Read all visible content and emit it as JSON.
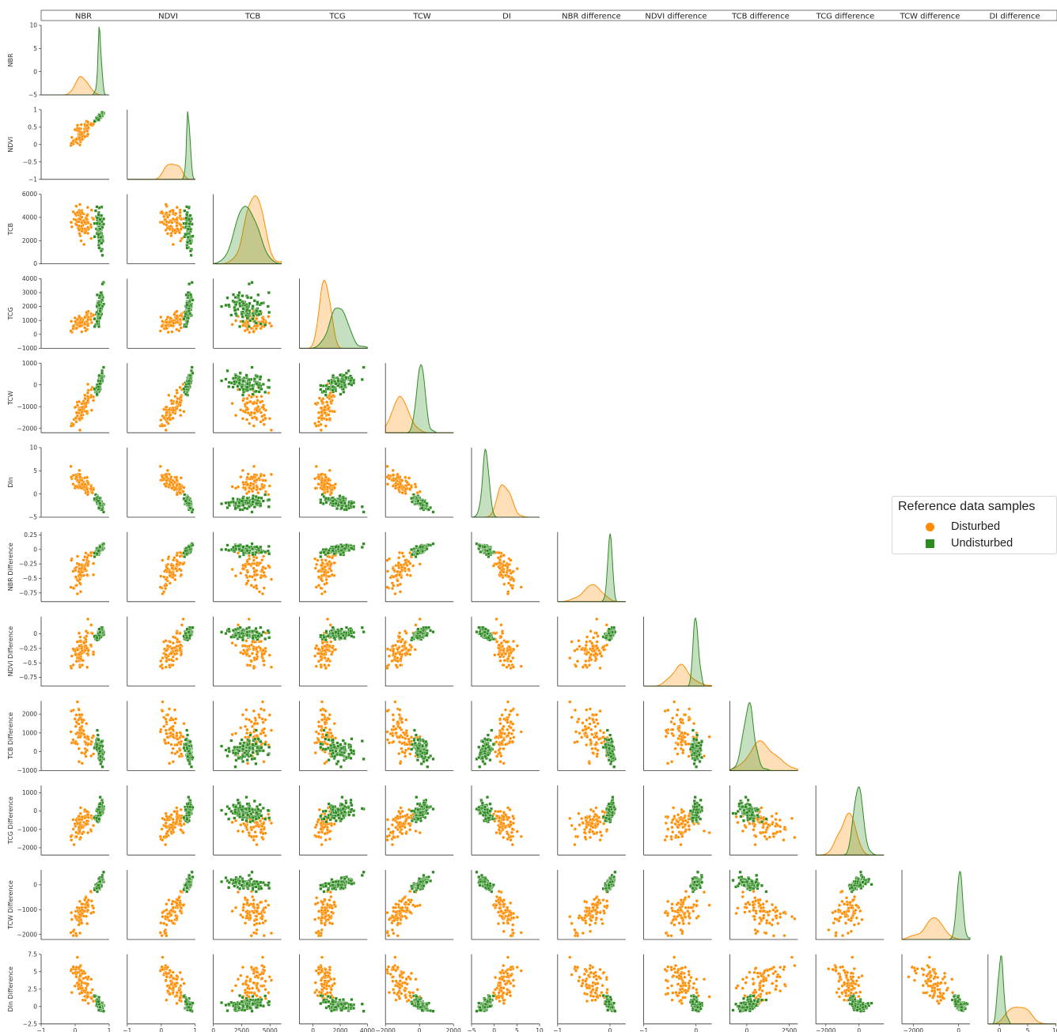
{
  "header": {
    "labels": [
      "NBR",
      "NDVI",
      "TCB",
      "TCG",
      "TCW",
      "DI",
      "NBR difference",
      "NDVI difference",
      "TCB difference",
      "TCG difference",
      "TCW difference",
      "DI difference"
    ]
  },
  "legend": {
    "title": "Reference data samples",
    "items": [
      {
        "label": "Disturbed",
        "color": "#ff8c00",
        "marker": "circle"
      },
      {
        "label": "Undisturbed",
        "color": "#2e8b22",
        "marker": "square"
      }
    ]
  },
  "chart_data": {
    "type": "scatter",
    "variables": [
      "NBR",
      "NDVI",
      "TCB",
      "TCG",
      "TCW",
      "DIn",
      "NBR Difference",
      "NDVI Difference",
      "TCB Difference",
      "TCG Difference",
      "TCW Difference",
      "DIn Difference"
    ],
    "row_labels": [
      "NBR",
      "NDVI",
      "TCB",
      "TCG",
      "TCW",
      "DIn",
      "NBR Difference",
      "NDVI Difference",
      "TCB Difference",
      "TCG Difference",
      "TCW Difference",
      "DIn Difference"
    ],
    "x_labels": [
      "NBR",
      "NDVI",
      "TCB",
      "TCG",
      "TCW",
      "DIn",
      "NBR Difference",
      "NDVI Difference",
      "TCB Difference",
      "TCG Difference",
      "TCW Difference",
      "DIn Difference"
    ],
    "x_ranges": [
      [
        -1,
        1
      ],
      [
        -1,
        1
      ],
      [
        0,
        6000
      ],
      [
        -1000,
        4000
      ],
      [
        -2000,
        2000
      ],
      [
        -5,
        10
      ],
      [
        -1,
        0.3
      ],
      [
        -1,
        0.3
      ],
      [
        -1000,
        3000
      ],
      [
        -2600,
        1500
      ],
      [
        -2500,
        500
      ],
      [
        -2,
        10
      ]
    ],
    "y_ranges": [
      [
        -5,
        10
      ],
      [
        -1,
        1
      ],
      [
        0,
        6000
      ],
      [
        -1000,
        4000
      ],
      [
        -2200,
        1000
      ],
      [
        -5,
        10
      ],
      [
        -0.9,
        0.3
      ],
      [
        -0.9,
        0.3
      ],
      [
        -1000,
        2700
      ],
      [
        -2400,
        1400
      ],
      [
        -2200,
        600
      ],
      [
        -2.5,
        7.5
      ]
    ],
    "x_ticks": [
      [
        -1,
        0,
        1
      ],
      [
        -1,
        0,
        1
      ],
      [
        0,
        2500,
        5000
      ],
      [
        0,
        2000,
        4000
      ],
      [
        -2000,
        0,
        2000
      ],
      [
        -5,
        0,
        5,
        10
      ],
      [
        -1,
        0
      ],
      [
        -1,
        0
      ],
      [
        0,
        2500
      ],
      [
        -2000,
        0
      ],
      [
        -2000,
        0
      ],
      [
        0,
        5,
        10
      ]
    ],
    "y_ticks": [
      [
        -5,
        0,
        5,
        10
      ],
      [
        -1.0,
        -0.5,
        0.0,
        0.5,
        1.0
      ],
      [
        0,
        2000,
        4000,
        6000
      ],
      [
        -1000,
        0,
        1000,
        2000,
        3000,
        4000
      ],
      [
        -2000,
        -1000,
        0,
        1000
      ],
      [
        -5,
        0,
        5,
        10
      ],
      [
        -0.75,
        -0.5,
        -0.25,
        0.0,
        0.25
      ],
      [
        -0.75,
        -0.5,
        -0.25,
        0.0
      ],
      [
        -1000,
        0,
        1000,
        2000
      ],
      [
        -2000,
        -1000,
        0,
        1000
      ],
      [
        -2000,
        -1000,
        0
      ],
      [
        -2.5,
        0.0,
        2.5,
        5.0,
        7.5
      ]
    ],
    "series": [
      {
        "name": "Disturbed",
        "color": "#ff8c00",
        "marker": "circle",
        "means": [
          0.2,
          0.35,
          3700,
          900,
          -1100,
          2.3,
          -0.35,
          -0.3,
          1000,
          -700,
          -1100,
          3.6
        ],
        "stds": [
          0.2,
          0.18,
          800,
          400,
          450,
          1.6,
          0.18,
          0.18,
          700,
          450,
          450,
          1.8
        ],
        "n": 80
      },
      {
        "name": "Undisturbed",
        "color": "#2e8b22",
        "marker": "square",
        "means": [
          0.72,
          0.8,
          2900,
          1900,
          100,
          -1.9,
          0.0,
          0.0,
          100,
          0,
          50,
          0.3
        ],
        "stds": [
          0.05,
          0.05,
          900,
          600,
          220,
          0.7,
          0.04,
          0.05,
          300,
          300,
          130,
          0.45
        ],
        "n": 110
      }
    ]
  }
}
